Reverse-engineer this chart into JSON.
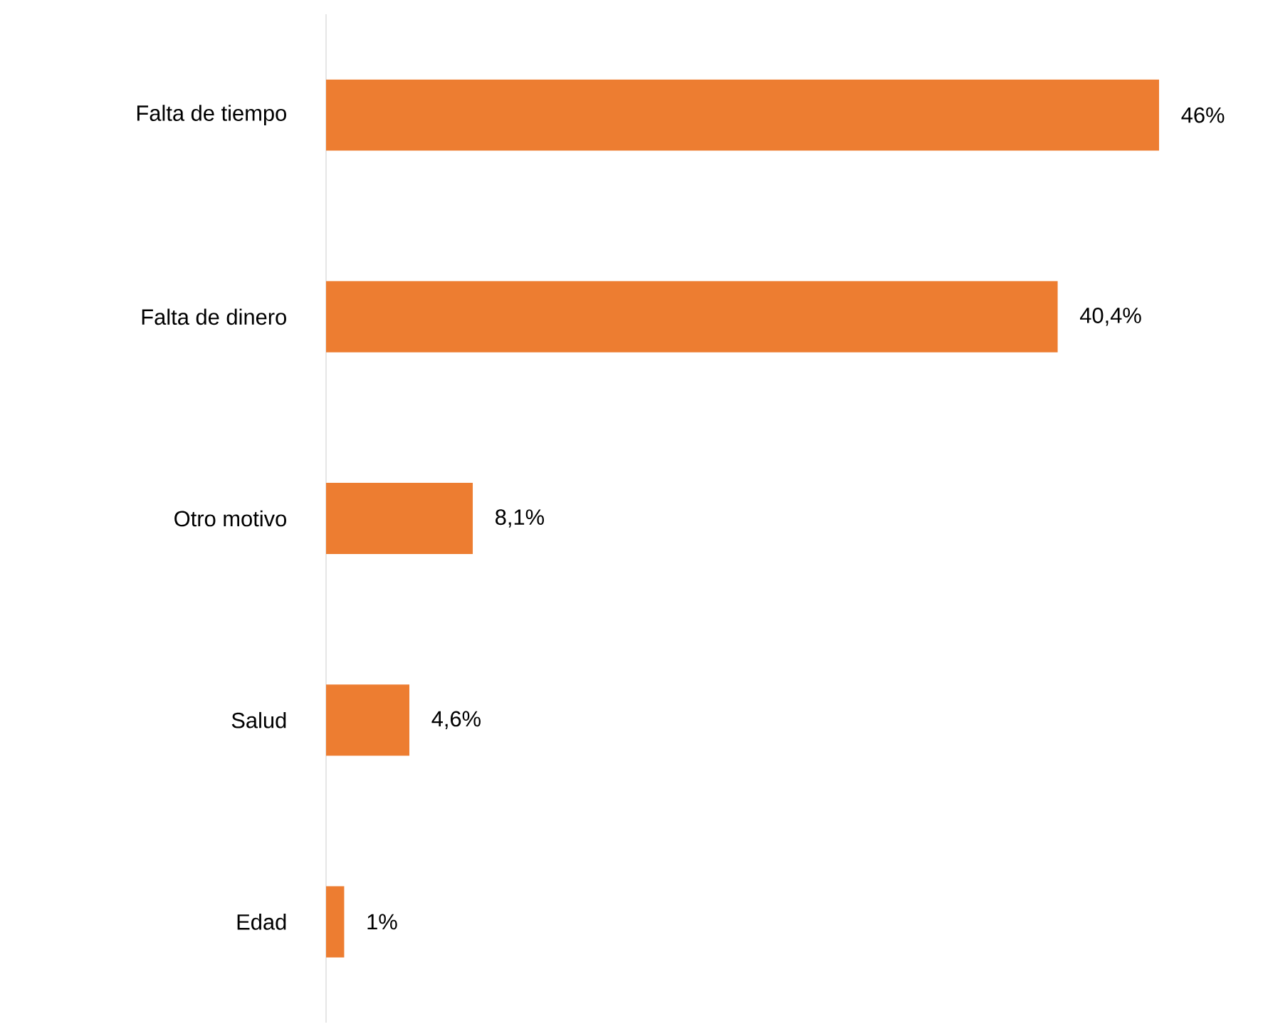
{
  "chart_data": {
    "type": "bar",
    "orientation": "horizontal",
    "categories": [
      "Falta de tiempo",
      "Falta de dinero",
      "Otro motivo",
      "Salud",
      "Edad"
    ],
    "values": [
      46,
      40.4,
      8.1,
      4.6,
      1
    ],
    "color": "#ed7d31",
    "value_labels": [
      "46%",
      "40,4%",
      "8,1%",
      "4,6%",
      "1%"
    ]
  }
}
